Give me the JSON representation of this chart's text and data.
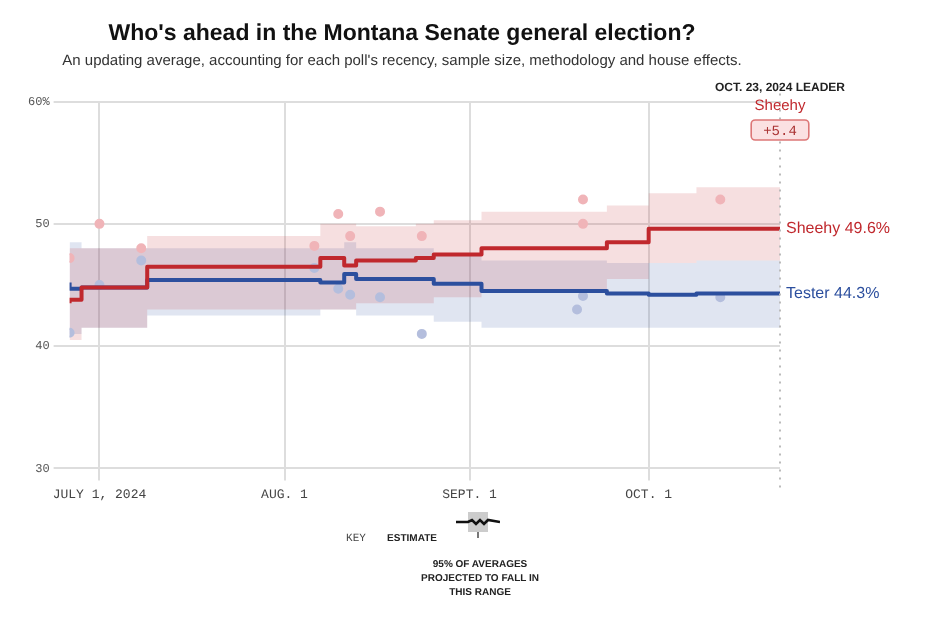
{
  "chart_data": {
    "type": "step",
    "title": "Who's ahead in the Montana Senate general election?",
    "subtitle": "An updating average, accounting for each poll's recency, sample size, methodology and house effects.",
    "annotations": [
      "OCT. 23, 2024 LEADER",
      "Sheehy",
      "+5.4",
      "KEY",
      "ESTIMATE",
      "95% OF AVERAGES PROJECTED TO FALL IN THIS RANGE"
    ],
    "x": [
      "2024-06-26",
      "2024-06-28",
      "2024-07-09",
      "2024-08-07",
      "2024-08-11",
      "2024-08-13",
      "2024-08-23",
      "2024-08-26",
      "2024-09-03",
      "2024-09-24",
      "2024-10-01",
      "2024-10-09",
      "2024-10-23"
    ],
    "series": [
      {
        "name": "Sheehy",
        "color": "#c0282d",
        "values": [
          43.5,
          43.8,
          44.8,
          46.5,
          47.2,
          46.6,
          47.0,
          47.2,
          47.5,
          48.0,
          48.5,
          49.6,
          49.6
        ],
        "lower": [
          40.5,
          40.5,
          41.5,
          43,
          43,
          43,
          43.5,
          43.5,
          44,
          44.5,
          45.5,
          46.8,
          47
        ],
        "upper": [
          48,
          48,
          48,
          49,
          50,
          50,
          49.8,
          50,
          50.3,
          51,
          51.5,
          52.5,
          53
        ],
        "value_labels": [
          null,
          null,
          null,
          null,
          null,
          null,
          null,
          null,
          null,
          null,
          null,
          null,
          "49.6%"
        ]
      },
      {
        "name": "Tester",
        "color": "#2c4f9e",
        "values": [
          45.2,
          44.7,
          44.8,
          45.4,
          45.2,
          45.9,
          45.5,
          45.5,
          45.1,
          44.5,
          44.3,
          44.2,
          44.3
        ],
        "lower": [
          41,
          41,
          41.5,
          42.5,
          43,
          43,
          42.5,
          42.5,
          42,
          41.5,
          41.5,
          41.5,
          41.5
        ],
        "upper": [
          48.5,
          48.5,
          48,
          48,
          48,
          48.5,
          48,
          48,
          47.5,
          47,
          46.8,
          46.8,
          47
        ],
        "value_labels": [
          null,
          null,
          null,
          null,
          null,
          null,
          null,
          null,
          null,
          null,
          null,
          null,
          "44.3%"
        ]
      },
      {
        "type": "scatter",
        "color": "#f0b4b8",
        "x": [
          "2024-06-26",
          "2024-07-01",
          "2024-07-08",
          "2024-08-06",
          "2024-08-10",
          "2024-08-12",
          "2024-08-17",
          "2024-08-24",
          "2024-09-20",
          "2024-09-20",
          "2024-10-13"
        ],
        "values": [
          47.2,
          50,
          48,
          48.2,
          50.8,
          49,
          51,
          49,
          52,
          50,
          52
        ]
      },
      {
        "type": "scatter",
        "color": "#b4bedd",
        "x": [
          "2024-06-26",
          "2024-07-01",
          "2024-07-08",
          "2024-08-06",
          "2024-08-10",
          "2024-08-12",
          "2024-08-17",
          "2024-08-24",
          "2024-09-19",
          "2024-09-20",
          "2024-10-13"
        ],
        "values": [
          41.1,
          45,
          47,
          46.4,
          44.7,
          44.2,
          44,
          41,
          43,
          44.1,
          44
        ]
      }
    ],
    "xlim": [
      "2024-06-26",
      "2024-10-23"
    ],
    "xticks": [
      {
        "value": "2024-07-01",
        "label": "JULY 1, 2024"
      },
      {
        "value": "2024-08-01",
        "label": "AUG. 1"
      },
      {
        "value": "2024-09-01",
        "label": "SEPT. 1"
      },
      {
        "value": "2024-10-01",
        "label": "OCT. 1"
      }
    ],
    "ylim": [
      30,
      60
    ],
    "yticks": [
      30,
      40,
      50,
      {
        "value": 60,
        "label": "60%"
      }
    ],
    "ref_lines": [
      {
        "axis": "x",
        "value": "2024-10-23",
        "color": "#bbbbbb",
        "line_style": "dotted"
      }
    ],
    "grid": true,
    "legend": false,
    "line_style": "solid"
  }
}
